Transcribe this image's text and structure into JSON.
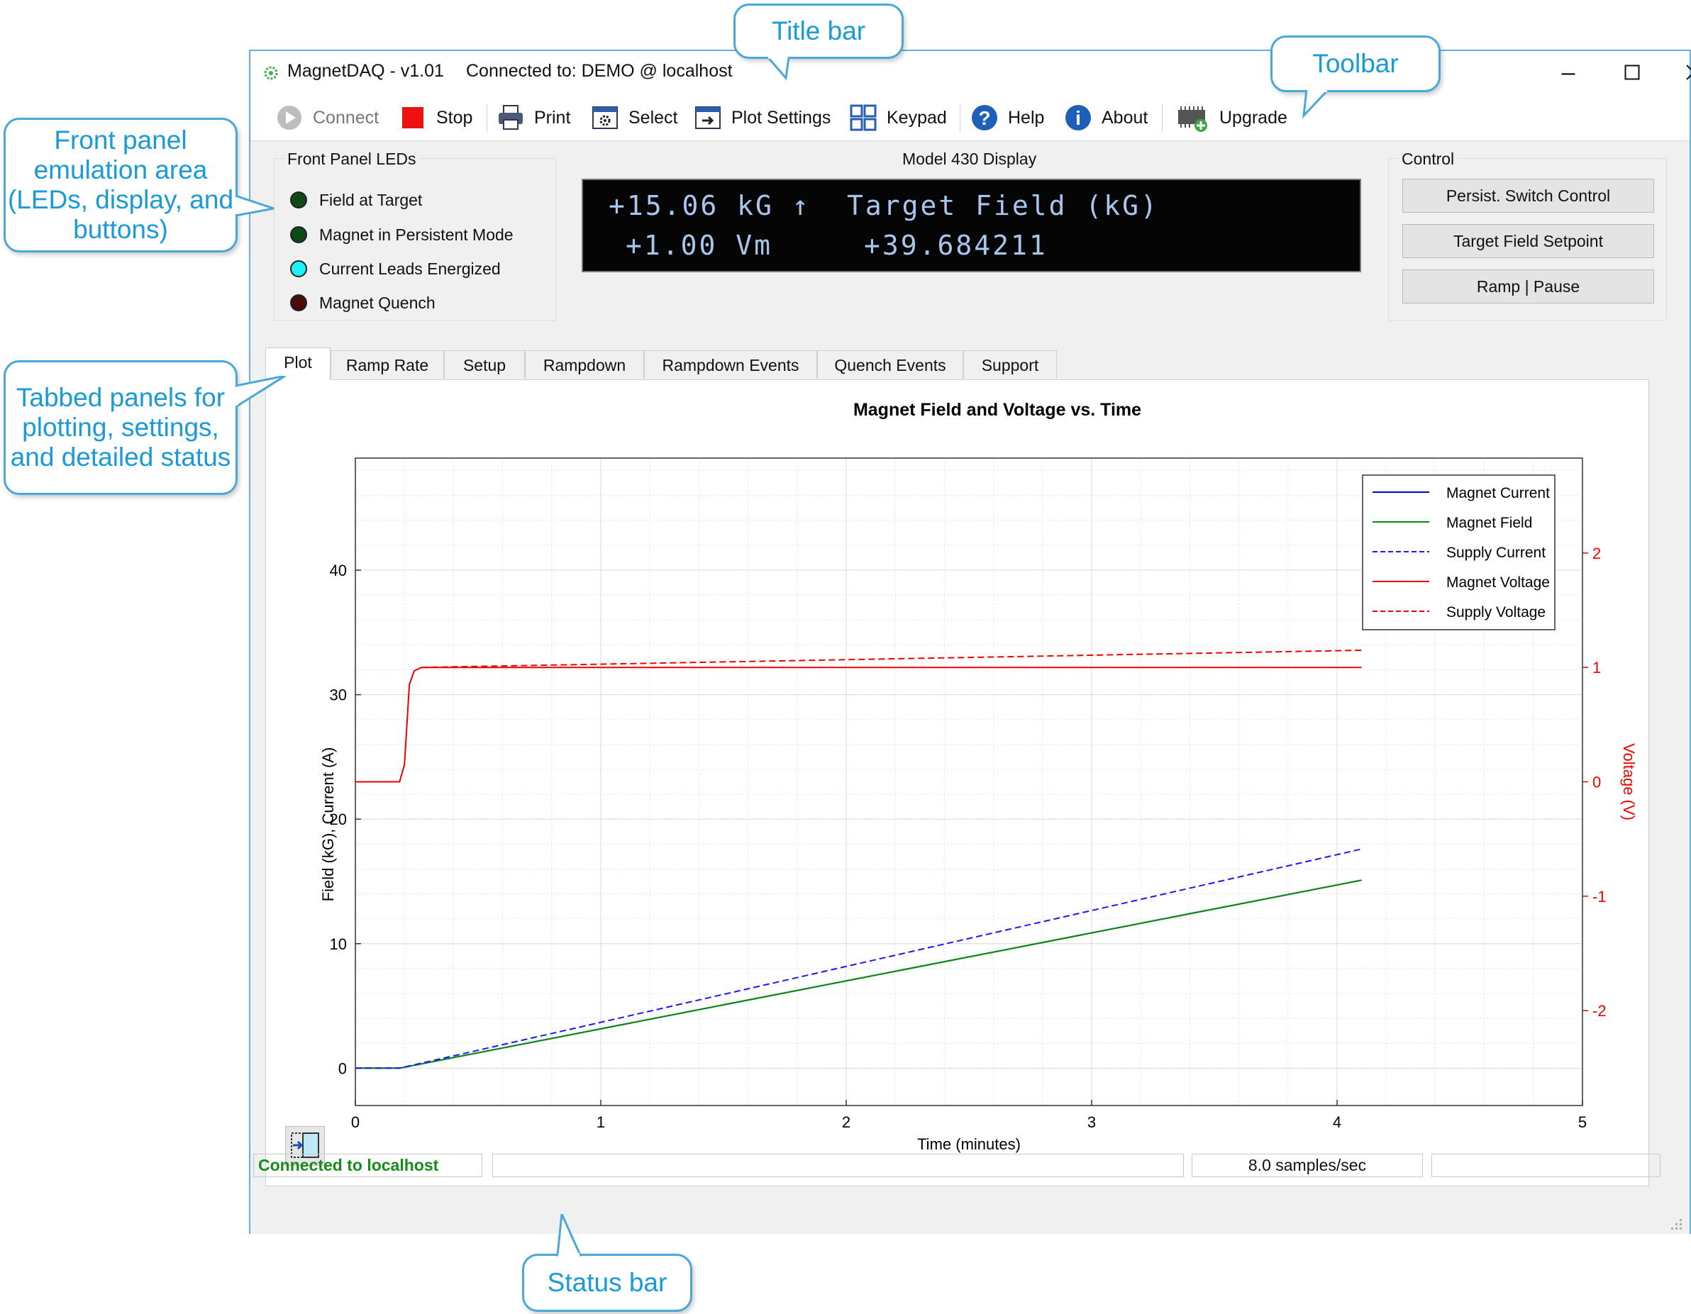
{
  "app": {
    "title": "MagnetDAQ - v1.01",
    "connection": "Connected to: DEMO @ localhost"
  },
  "callouts": {
    "title_bar": "Title bar",
    "toolbar": "Toolbar",
    "front_panel": "Front panel emulation area (LEDs, display, and buttons)",
    "tabbed": "Tabbed panels for plotting, settings, and detailed status",
    "status_bar": "Status bar"
  },
  "toolbar": {
    "connect": "Connect",
    "stop": "Stop",
    "print": "Print",
    "select": "Select",
    "plot_settings": "Plot Settings",
    "keypad": "Keypad",
    "help": "Help",
    "about": "About",
    "upgrade": "Upgrade"
  },
  "front_panel": {
    "title": "Front Panel LEDs",
    "leds": [
      {
        "label": "Field at Target",
        "color": "#0d4a14"
      },
      {
        "label": "Magnet in Persistent Mode",
        "color": "#0d4a14"
      },
      {
        "label": "Current Leads Energized",
        "color": "#1ff0f5"
      },
      {
        "label": "Magnet Quench",
        "color": "#4a0b0b"
      }
    ]
  },
  "display": {
    "title": "Model 430 Display",
    "line1_left": "+15.06 kG ↑",
    "line1_right": "Target Field (kG)",
    "line2_left": "+1.00 Vm",
    "line2_right": "+39.684211"
  },
  "control": {
    "title": "Control",
    "buttons": [
      "Persist. Switch Control",
      "Target Field Setpoint",
      "Ramp | Pause"
    ]
  },
  "tabs": [
    "Plot",
    "Ramp Rate",
    "Setup",
    "Rampdown",
    "Rampdown Events",
    "Quench Events",
    "Support"
  ],
  "status": {
    "connection": "Connected to localhost",
    "rate": "8.0 samples/sec",
    "connection_color": "#1a8a1a"
  },
  "chart_data": {
    "type": "line",
    "title": "Magnet Field and Voltage vs. Time",
    "xlabel": "Time (minutes)",
    "ylabel": "Field (kG), Current (A)",
    "y2label": "Voltage (V)",
    "xlim": [
      0,
      5
    ],
    "ylim": [
      -3,
      49
    ],
    "y2lim": [
      -2.83,
      2.83
    ],
    "xticks": [
      0,
      1,
      2,
      3,
      4,
      5
    ],
    "yticks": [
      0,
      10,
      20,
      30,
      40
    ],
    "y2ticks": [
      -2,
      -1,
      0,
      1,
      2
    ],
    "grid": true,
    "legend_position": "top-right",
    "series": [
      {
        "name": "Magnet Current",
        "axis": "left",
        "color": "#0000cc",
        "dash": false,
        "points": [
          [
            0,
            0
          ],
          [
            0.18,
            0
          ],
          [
            4.1,
            15.1
          ]
        ]
      },
      {
        "name": "Magnet Field",
        "axis": "left",
        "color": "#0a8a0a",
        "dash": false,
        "points": [
          [
            0,
            0
          ],
          [
            0.18,
            0
          ],
          [
            4.1,
            15.1
          ]
        ]
      },
      {
        "name": "Supply Current",
        "axis": "left",
        "color": "#1a1aee",
        "dash": true,
        "points": [
          [
            0,
            0
          ],
          [
            0.18,
            0
          ],
          [
            4.1,
            17.6
          ]
        ]
      },
      {
        "name": "Magnet Voltage",
        "axis": "right",
        "color": "#ee0000",
        "dash": false,
        "points": [
          [
            0,
            0
          ],
          [
            0.18,
            0
          ],
          [
            0.2,
            0.15
          ],
          [
            0.21,
            0.5
          ],
          [
            0.22,
            0.85
          ],
          [
            0.24,
            0.97
          ],
          [
            0.27,
            1.0
          ],
          [
            4.1,
            1.0
          ]
        ]
      },
      {
        "name": "Supply Voltage",
        "axis": "right",
        "color": "#ee0000",
        "dash": true,
        "points": [
          [
            0.27,
            1.0
          ],
          [
            4.1,
            1.15
          ]
        ]
      }
    ]
  }
}
